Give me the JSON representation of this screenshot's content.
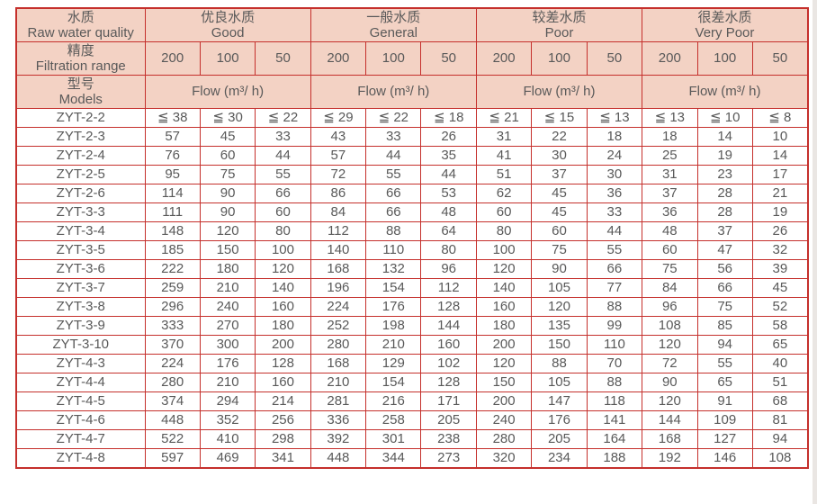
{
  "colors": {
    "grid_border": "#c5302c",
    "header_background": "#f3d2c4",
    "text": "#595959",
    "right_edge_strip": "#eae6e3"
  },
  "table": {
    "header": {
      "quality": {
        "zh": "水质",
        "en": "Raw water quality"
      },
      "precision": {
        "zh": "精度",
        "en": "Filtration range"
      },
      "models": {
        "zh": "型号",
        "en": "Models"
      },
      "groups": [
        {
          "zh": "优良水质",
          "en": "Good"
        },
        {
          "zh": "一般水质",
          "en": "General"
        },
        {
          "zh": "较差水质",
          "en": "Poor"
        },
        {
          "zh": "很差水质",
          "en": "Very Poor"
        }
      ],
      "precisions": [
        "200",
        "100",
        "50"
      ],
      "flow_label": "Flow (m³/ h)"
    },
    "rows": [
      {
        "model": "ZYT-2-2",
        "values": [
          "≦ 38",
          "≦ 30",
          "≦ 22",
          "≦ 29",
          "≦ 22",
          "≦ 18",
          "≦ 21",
          "≦ 15",
          "≦ 13",
          "≦ 13",
          "≦ 10",
          "≦ 8"
        ]
      },
      {
        "model": "ZYT-2-3",
        "values": [
          "57",
          "45",
          "33",
          "43",
          "33",
          "26",
          "31",
          "22",
          "18",
          "18",
          "14",
          "10"
        ]
      },
      {
        "model": "ZYT-2-4",
        "values": [
          "76",
          "60",
          "44",
          "57",
          "44",
          "35",
          "41",
          "30",
          "24",
          "25",
          "19",
          "14"
        ]
      },
      {
        "model": "ZYT-2-5",
        "values": [
          "95",
          "75",
          "55",
          "72",
          "55",
          "44",
          "51",
          "37",
          "30",
          "31",
          "23",
          "17"
        ]
      },
      {
        "model": "ZYT-2-6",
        "values": [
          "114",
          "90",
          "66",
          "86",
          "66",
          "53",
          "62",
          "45",
          "36",
          "37",
          "28",
          "21"
        ]
      },
      {
        "model": "ZYT-3-3",
        "values": [
          "111",
          "90",
          "60",
          "84",
          "66",
          "48",
          "60",
          "45",
          "33",
          "36",
          "28",
          "19"
        ]
      },
      {
        "model": "ZYT-3-4",
        "values": [
          "148",
          "120",
          "80",
          "112",
          "88",
          "64",
          "80",
          "60",
          "44",
          "48",
          "37",
          "26"
        ]
      },
      {
        "model": "ZYT-3-5",
        "values": [
          "185",
          "150",
          "100",
          "140",
          "110",
          "80",
          "100",
          "75",
          "55",
          "60",
          "47",
          "32"
        ]
      },
      {
        "model": "ZYT-3-6",
        "values": [
          "222",
          "180",
          "120",
          "168",
          "132",
          "96",
          "120",
          "90",
          "66",
          "75",
          "56",
          "39"
        ]
      },
      {
        "model": "ZYT-3-7",
        "values": [
          "259",
          "210",
          "140",
          "196",
          "154",
          "112",
          "140",
          "105",
          "77",
          "84",
          "66",
          "45"
        ]
      },
      {
        "model": "ZYT-3-8",
        "values": [
          "296",
          "240",
          "160",
          "224",
          "176",
          "128",
          "160",
          "120",
          "88",
          "96",
          "75",
          "52"
        ]
      },
      {
        "model": "ZYT-3-9",
        "values": [
          "333",
          "270",
          "180",
          "252",
          "198",
          "144",
          "180",
          "135",
          "99",
          "108",
          "85",
          "58"
        ]
      },
      {
        "model": "ZYT-3-10",
        "values": [
          "370",
          "300",
          "200",
          "280",
          "210",
          "160",
          "200",
          "150",
          "110",
          "120",
          "94",
          "65"
        ]
      },
      {
        "model": "ZYT-4-3",
        "values": [
          "224",
          "176",
          "128",
          "168",
          "129",
          "102",
          "120",
          "88",
          "70",
          "72",
          "55",
          "40"
        ]
      },
      {
        "model": "ZYT-4-4",
        "values": [
          "280",
          "210",
          "160",
          "210",
          "154",
          "128",
          "150",
          "105",
          "88",
          "90",
          "65",
          "51"
        ]
      },
      {
        "model": "ZYT-4-5",
        "values": [
          "374",
          "294",
          "214",
          "281",
          "216",
          "171",
          "200",
          "147",
          "118",
          "120",
          "91",
          "68"
        ]
      },
      {
        "model": "ZYT-4-6",
        "values": [
          "448",
          "352",
          "256",
          "336",
          "258",
          "205",
          "240",
          "176",
          "141",
          "144",
          "109",
          "81"
        ]
      },
      {
        "model": "ZYT-4-7",
        "values": [
          "522",
          "410",
          "298",
          "392",
          "301",
          "238",
          "280",
          "205",
          "164",
          "168",
          "127",
          "94"
        ]
      },
      {
        "model": "ZYT-4-8",
        "values": [
          "597",
          "469",
          "341",
          "448",
          "344",
          "273",
          "320",
          "234",
          "188",
          "192",
          "146",
          "108"
        ]
      }
    ]
  }
}
